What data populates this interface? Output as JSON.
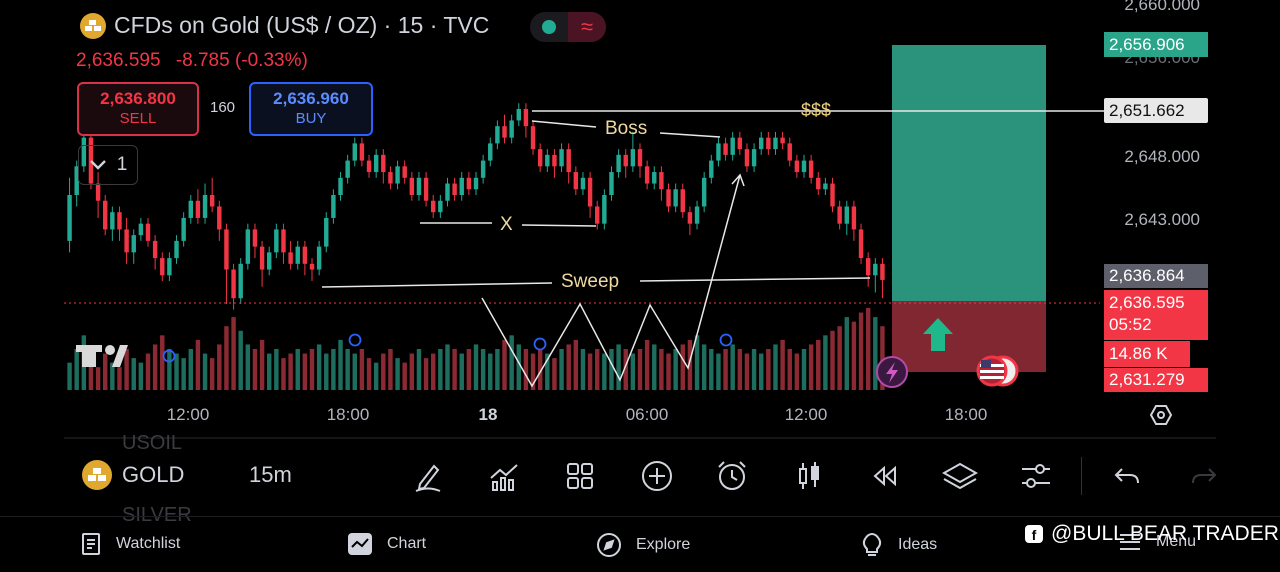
{
  "header": {
    "title": "CFDs on Gold (US$ / OZ) · 15 · TVC",
    "price": "2,636.595",
    "change": "-8.785 (-0.33%)",
    "toggle_icon_right": "≈"
  },
  "trade": {
    "sell_price": "2,636.800",
    "sell_label": "SELL",
    "spread": "160",
    "buy_price": "2,636.960",
    "buy_label": "BUY"
  },
  "legend_toggle": {
    "count": "1",
    "icon": "chevron-down-icon"
  },
  "price_axis": {
    "labels": [
      "2,660.000",
      "2,648.000",
      "2,643.000"
    ],
    "partial_label": "2,656.000"
  },
  "price_tags": {
    "target": "2,656.906",
    "level": "2,651.662",
    "previous_close": "2,636.864",
    "last_price": "2,636.595",
    "countdown": "05:52",
    "volume": "14.86 K",
    "stop": "2,631.279"
  },
  "time_axis": {
    "labels": [
      "12:00",
      "18:00",
      "18",
      "06:00",
      "12:00",
      "18:00"
    ]
  },
  "annotations": {
    "boss": "Boss",
    "dollars": "$$$",
    "x": "X",
    "sweep": "Sweep"
  },
  "toolbar": {
    "symbol": "GOLD",
    "symbol_above": "USOIL",
    "symbol_below": "SILVER",
    "timeframe": "15m",
    "icons": [
      "pencil-icon",
      "indicators-icon",
      "grid-layout-icon",
      "plus-circle-icon",
      "alarm-icon",
      "candles-icon",
      "replay-icon",
      "layers-icon",
      "settings-sliders-icon",
      "undo-icon",
      "redo-icon"
    ]
  },
  "nav": {
    "watchlist": "Watchlist",
    "chart": "Chart",
    "explore": "Explore",
    "ideas": "Ideas",
    "menu": "Menu"
  },
  "watermark": "@BULL BEAR TRADER",
  "colors": {
    "up": "#22ab94",
    "down": "#f23645",
    "profit_zone": "#2f9e86",
    "loss_zone": "#8e2b37",
    "buy": "#2962ff"
  },
  "chart_data": {
    "type": "candlestick",
    "symbol": "CFDs on Gold (US$ / OZ)",
    "interval": "15",
    "x_tick_labels": [
      "12:00",
      "18:00",
      "18",
      "06:00",
      "12:00",
      "18:00"
    ],
    "y_tick_labels": [
      "2,660.000",
      "2,648.000",
      "2,643.000"
    ],
    "ylim": [
      2627.0,
      2661.0
    ],
    "candles": [
      [
        2640.0,
        2644.0,
        2645.5,
        2639.0
      ],
      [
        2644.0,
        2646.5,
        2647.0,
        2643.0
      ],
      [
        2646.5,
        2649.0,
        2651.5,
        2646.0
      ],
      [
        2649.0,
        2645.0,
        2649.5,
        2644.5
      ],
      [
        2645.0,
        2643.5,
        2646.0,
        2642.0
      ],
      [
        2643.5,
        2641.0,
        2644.0,
        2640.5
      ],
      [
        2641.0,
        2642.5,
        2643.0,
        2640.0
      ],
      [
        2642.5,
        2641.0,
        2643.0,
        2640.0
      ],
      [
        2641.0,
        2639.0,
        2642.0,
        2638.0
      ],
      [
        2639.0,
        2640.5,
        2641.0,
        2638.0
      ],
      [
        2640.5,
        2641.5,
        2642.0,
        2640.0
      ],
      [
        2641.5,
        2640.0,
        2642.0,
        2639.5
      ],
      [
        2640.0,
        2638.5,
        2640.5,
        2637.5
      ],
      [
        2638.5,
        2637.0,
        2639.0,
        2636.5
      ],
      [
        2637.0,
        2638.5,
        2639.0,
        2636.5
      ],
      [
        2638.5,
        2640.0,
        2640.5,
        2638.0
      ],
      [
        2640.0,
        2642.0,
        2642.5,
        2639.5
      ],
      [
        2642.0,
        2643.5,
        2644.0,
        2641.5
      ],
      [
        2643.5,
        2642.0,
        2644.5,
        2641.5
      ],
      [
        2642.0,
        2644.0,
        2645.0,
        2641.5
      ],
      [
        2644.0,
        2643.0,
        2645.5,
        2642.5
      ],
      [
        2643.0,
        2641.0,
        2643.5,
        2640.0
      ],
      [
        2641.0,
        2637.5,
        2641.5,
        2634.5
      ],
      [
        2637.5,
        2635.0,
        2638.0,
        2634.0
      ],
      [
        2635.0,
        2638.0,
        2638.5,
        2634.5
      ],
      [
        2638.0,
        2641.0,
        2641.5,
        2637.5
      ],
      [
        2641.0,
        2639.5,
        2641.5,
        2638.5
      ],
      [
        2639.5,
        2637.5,
        2640.0,
        2636.0
      ],
      [
        2637.5,
        2639.0,
        2639.5,
        2637.0
      ],
      [
        2639.0,
        2641.0,
        2641.5,
        2638.5
      ],
      [
        2641.0,
        2639.0,
        2641.5,
        2638.0
      ],
      [
        2639.0,
        2638.0,
        2640.0,
        2637.5
      ],
      [
        2638.0,
        2639.5,
        2640.0,
        2637.5
      ],
      [
        2639.5,
        2638.0,
        2640.0,
        2637.0
      ],
      [
        2638.0,
        2637.5,
        2638.5,
        2636.5
      ],
      [
        2637.5,
        2639.5,
        2640.0,
        2637.0
      ],
      [
        2639.5,
        2642.0,
        2642.5,
        2639.0
      ],
      [
        2642.0,
        2644.0,
        2644.5,
        2641.5
      ],
      [
        2644.0,
        2645.5,
        2646.0,
        2643.5
      ],
      [
        2645.5,
        2647.0,
        2647.5,
        2645.0
      ],
      [
        2647.0,
        2648.5,
        2649.0,
        2646.5
      ],
      [
        2648.5,
        2647.0,
        2649.0,
        2646.5
      ],
      [
        2647.0,
        2646.0,
        2647.5,
        2645.5
      ],
      [
        2646.0,
        2647.5,
        2648.0,
        2645.5
      ],
      [
        2647.5,
        2646.0,
        2648.0,
        2645.0
      ],
      [
        2646.0,
        2645.0,
        2646.5,
        2644.5
      ],
      [
        2645.0,
        2646.5,
        2647.0,
        2644.5
      ],
      [
        2646.5,
        2645.5,
        2647.0,
        2645.0
      ],
      [
        2645.5,
        2644.0,
        2646.0,
        2643.5
      ],
      [
        2644.0,
        2645.5,
        2646.0,
        2643.5
      ],
      [
        2645.5,
        2643.5,
        2646.0,
        2643.0
      ],
      [
        2643.5,
        2642.5,
        2644.0,
        2642.0
      ],
      [
        2642.5,
        2643.5,
        2644.0,
        2642.0
      ],
      [
        2643.5,
        2645.0,
        2645.5,
        2643.0
      ],
      [
        2645.0,
        2644.0,
        2645.5,
        2643.5
      ],
      [
        2644.0,
        2645.5,
        2646.0,
        2643.5
      ],
      [
        2645.5,
        2644.5,
        2646.0,
        2644.0
      ],
      [
        2644.5,
        2645.5,
        2646.0,
        2644.0
      ],
      [
        2645.5,
        2647.0,
        2647.5,
        2645.0
      ],
      [
        2647.0,
        2648.5,
        2649.0,
        2646.5
      ],
      [
        2648.5,
        2650.0,
        2650.5,
        2648.0
      ],
      [
        2650.0,
        2649.0,
        2651.0,
        2648.5
      ],
      [
        2649.0,
        2650.5,
        2651.0,
        2648.5
      ],
      [
        2650.5,
        2651.5,
        2652.0,
        2650.0
      ],
      [
        2651.5,
        2650.0,
        2652.0,
        2649.0
      ],
      [
        2650.0,
        2648.0,
        2650.5,
        2647.5
      ],
      [
        2648.0,
        2646.5,
        2648.5,
        2646.0
      ],
      [
        2646.5,
        2647.5,
        2648.0,
        2646.0
      ],
      [
        2647.5,
        2646.5,
        2648.0,
        2645.5
      ],
      [
        2646.5,
        2648.0,
        2648.5,
        2646.0
      ],
      [
        2648.0,
        2646.0,
        2648.5,
        2645.0
      ],
      [
        2646.0,
        2644.5,
        2646.5,
        2644.0
      ],
      [
        2644.5,
        2645.5,
        2646.0,
        2644.0
      ],
      [
        2645.5,
        2643.0,
        2646.0,
        2642.0
      ],
      [
        2643.0,
        2641.5,
        2643.5,
        2641.0
      ],
      [
        2641.5,
        2644.0,
        2644.5,
        2641.0
      ],
      [
        2644.0,
        2646.0,
        2646.5,
        2643.5
      ],
      [
        2646.0,
        2647.5,
        2648.0,
        2645.5
      ],
      [
        2647.5,
        2646.5,
        2648.0,
        2645.5
      ],
      [
        2646.5,
        2648.0,
        2649.5,
        2646.0
      ],
      [
        2648.0,
        2646.5,
        2648.5,
        2645.5
      ],
      [
        2646.5,
        2645.0,
        2647.0,
        2644.5
      ],
      [
        2645.0,
        2646.0,
        2646.5,
        2644.5
      ],
      [
        2646.0,
        2644.5,
        2646.5,
        2643.5
      ],
      [
        2644.5,
        2643.0,
        2645.0,
        2642.5
      ],
      [
        2643.0,
        2644.5,
        2645.0,
        2642.5
      ],
      [
        2644.5,
        2642.5,
        2645.0,
        2642.0
      ],
      [
        2642.5,
        2641.5,
        2643.0,
        2640.5
      ],
      [
        2641.5,
        2643.0,
        2643.5,
        2641.0
      ],
      [
        2643.0,
        2645.5,
        2646.0,
        2642.5
      ],
      [
        2645.5,
        2647.0,
        2647.5,
        2645.0
      ],
      [
        2647.0,
        2648.5,
        2649.0,
        2646.5
      ],
      [
        2648.5,
        2647.5,
        2649.0,
        2647.0
      ],
      [
        2647.5,
        2649.0,
        2649.5,
        2647.0
      ],
      [
        2649.0,
        2648.0,
        2649.5,
        2647.5
      ],
      [
        2648.0,
        2646.5,
        2648.5,
        2646.0
      ],
      [
        2646.5,
        2648.0,
        2648.5,
        2646.0
      ],
      [
        2648.0,
        2649.0,
        2649.5,
        2647.5
      ],
      [
        2649.0,
        2648.0,
        2649.5,
        2647.5
      ],
      [
        2648.0,
        2649.0,
        2649.5,
        2647.5
      ],
      [
        2649.0,
        2648.5,
        2649.5,
        2648.0
      ],
      [
        2648.5,
        2647.0,
        2649.0,
        2646.5
      ],
      [
        2647.0,
        2646.0,
        2647.5,
        2645.5
      ],
      [
        2646.0,
        2647.0,
        2647.5,
        2645.5
      ],
      [
        2647.0,
        2645.5,
        2647.5,
        2645.0
      ],
      [
        2645.5,
        2644.5,
        2646.0,
        2644.0
      ],
      [
        2644.5,
        2645.0,
        2645.5,
        2644.0
      ],
      [
        2645.0,
        2643.0,
        2645.5,
        2642.5
      ],
      [
        2643.0,
        2641.5,
        2643.5,
        2641.0
      ],
      [
        2641.5,
        2643.0,
        2643.5,
        2640.5
      ],
      [
        2643.0,
        2641.0,
        2643.5,
        2640.0
      ],
      [
        2641.0,
        2638.5,
        2641.5,
        2638.0
      ],
      [
        2638.5,
        2637.0,
        2639.0,
        2636.0
      ],
      [
        2637.0,
        2638.0,
        2638.5,
        2635.5
      ],
      [
        2638.0,
        2636.595,
        2638.5,
        2635.0
      ]
    ],
    "volume": [
      6,
      9,
      12,
      7,
      5,
      8,
      6,
      5,
      9,
      7,
      6,
      8,
      10,
      12,
      9,
      8,
      7,
      9,
      11,
      8,
      7,
      10,
      14,
      16,
      13,
      10,
      9,
      11,
      8,
      9,
      7,
      8,
      9,
      8,
      9,
      10,
      8,
      9,
      11,
      9,
      8,
      9,
      7,
      6,
      8,
      9,
      7,
      6,
      8,
      9,
      7,
      8,
      9,
      10,
      9,
      8,
      9,
      10,
      9,
      8,
      9,
      11,
      12,
      10,
      9,
      8,
      9,
      8,
      7,
      9,
      10,
      11,
      9,
      8,
      9,
      8,
      9,
      10,
      9,
      8,
      9,
      11,
      10,
      9,
      8,
      9,
      10,
      11,
      12,
      10,
      9,
      8,
      9,
      10,
      9,
      8,
      9,
      8,
      9,
      10,
      11,
      9,
      8,
      9,
      10,
      11,
      12,
      13,
      14,
      16,
      15,
      17,
      18,
      16,
      14
    ]
  }
}
